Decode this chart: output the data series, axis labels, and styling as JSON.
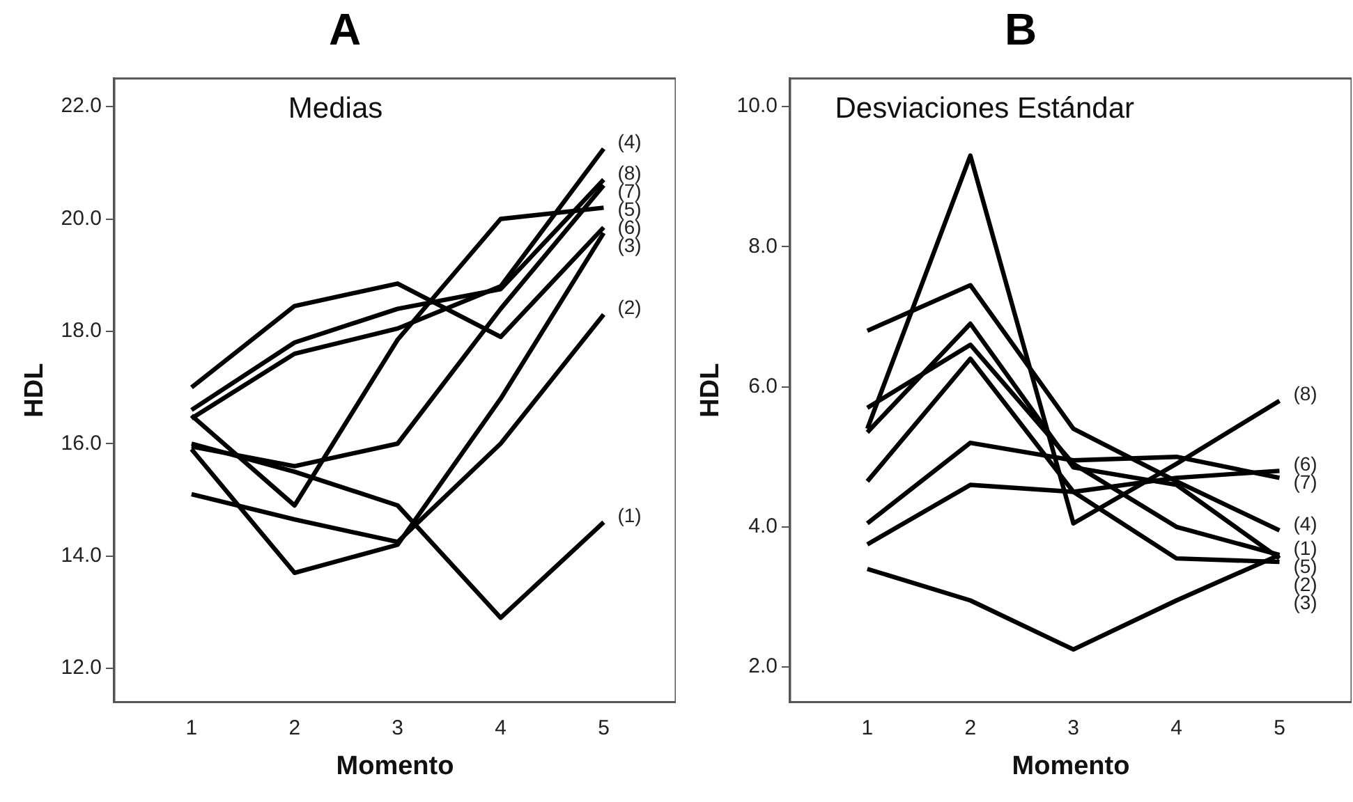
{
  "chart_data": [
    {
      "type": "line",
      "title": "A",
      "subtitle": "Medias",
      "xlabel": "Momento",
      "ylabel": "HDL",
      "x": [
        1,
        2,
        3,
        4,
        5
      ],
      "xlim": [
        0.25,
        5.7
      ],
      "xticks": [
        1,
        2,
        3,
        4,
        5
      ],
      "ylim": [
        11.4,
        22.5
      ],
      "yticks": [
        {
          "value": 12,
          "label": "12.0"
        },
        {
          "value": 14,
          "label": "14.0"
        },
        {
          "value": 16,
          "label": "16.0"
        },
        {
          "value": 18,
          "label": "18.0"
        },
        {
          "value": 20,
          "label": "20.0"
        },
        {
          "value": 22,
          "label": "22.0"
        }
      ],
      "grid": false,
      "marker": "none",
      "line_style": "solid",
      "series": [
        {
          "name": "(1)",
          "color": "#000000",
          "values": [
            16.0,
            15.5,
            14.9,
            12.9,
            14.6
          ]
        },
        {
          "name": "(2)",
          "color": "#000000",
          "values": [
            15.1,
            14.65,
            14.25,
            16.0,
            18.3
          ]
        },
        {
          "name": "(3)",
          "color": "#000000",
          "values": [
            15.9,
            13.7,
            14.2,
            16.8,
            19.75
          ]
        },
        {
          "name": "(4)",
          "color": "#000000",
          "values": [
            16.45,
            17.6,
            18.05,
            18.8,
            21.25
          ]
        },
        {
          "name": "(5)",
          "color": "#000000",
          "values": [
            16.5,
            14.9,
            17.85,
            20.0,
            20.2
          ]
        },
        {
          "name": "(6)",
          "color": "#000000",
          "values": [
            17.0,
            18.45,
            18.85,
            17.9,
            19.85
          ]
        },
        {
          "name": "(7)",
          "color": "#000000",
          "values": [
            15.95,
            15.6,
            16.0,
            18.4,
            20.6
          ]
        },
        {
          "name": "(8)",
          "color": "#000000",
          "values": [
            16.6,
            17.8,
            18.4,
            18.75,
            20.7
          ]
        }
      ]
    },
    {
      "type": "line",
      "title": "B",
      "subtitle": "Desviaciones Estándar",
      "xlabel": "Momento",
      "ylabel": "HDL",
      "x": [
        1,
        2,
        3,
        4,
        5
      ],
      "xlim": [
        0.25,
        5.7
      ],
      "xticks": [
        1,
        2,
        3,
        4,
        5
      ],
      "ylim": [
        1.5,
        10.4
      ],
      "yticks": [
        {
          "value": 2,
          "label": "2.0"
        },
        {
          "value": 4,
          "label": "4.0"
        },
        {
          "value": 6,
          "label": "6.0"
        },
        {
          "value": 8,
          "label": "8.0"
        },
        {
          "value": 10,
          "label": "10.0"
        }
      ],
      "grid": false,
      "marker": "none",
      "line_style": "solid",
      "series": [
        {
          "name": "(1)",
          "color": "#000000",
          "values": [
            5.7,
            6.6,
            4.9,
            4.0,
            3.6
          ]
        },
        {
          "name": "(2)",
          "color": "#000000",
          "values": [
            5.35,
            6.9,
            4.85,
            4.6,
            3.55
          ]
        },
        {
          "name": "(3)",
          "color": "#000000",
          "values": [
            4.65,
            6.4,
            4.5,
            3.55,
            3.5
          ]
        },
        {
          "name": "(4)",
          "color": "#000000",
          "values": [
            6.8,
            7.45,
            5.4,
            4.65,
            3.95
          ]
        },
        {
          "name": "(5)",
          "color": "#000000",
          "values": [
            3.4,
            2.95,
            2.25,
            2.95,
            3.6
          ]
        },
        {
          "name": "(6)",
          "color": "#000000",
          "values": [
            3.75,
            4.6,
            4.5,
            4.7,
            4.8
          ]
        },
        {
          "name": "(7)",
          "color": "#000000",
          "values": [
            4.05,
            5.2,
            4.95,
            5.0,
            4.7
          ]
        },
        {
          "name": "(8)",
          "color": "#000000",
          "values": [
            5.4,
            9.3,
            4.05,
            4.9,
            5.8
          ]
        }
      ]
    }
  ]
}
